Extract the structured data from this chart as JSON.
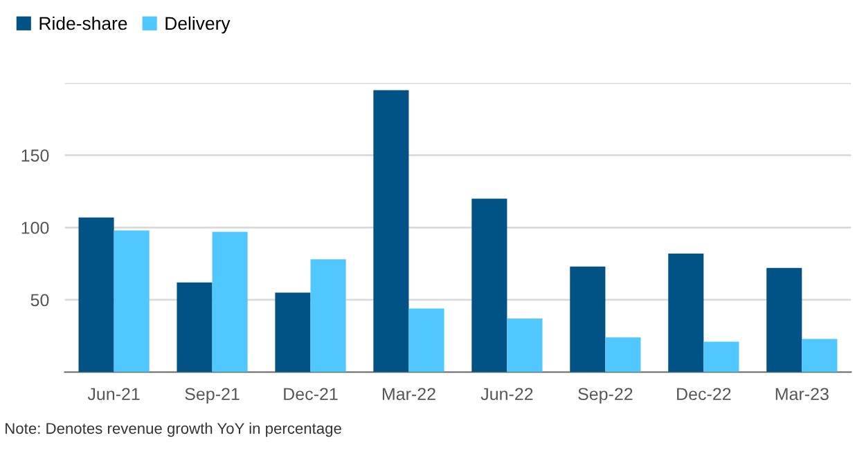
{
  "chart_data": {
    "type": "bar",
    "categories": [
      "Jun-21",
      "Sep-21",
      "Dec-21",
      "Mar-22",
      "Jun-22",
      "Sep-22",
      "Dec-22",
      "Mar-23"
    ],
    "series": [
      {
        "name": "Ride-share",
        "color": "#005384",
        "values": [
          107,
          62,
          55,
          195,
          120,
          73,
          82,
          72
        ]
      },
      {
        "name": "Delivery",
        "color": "#50c8ff",
        "values": [
          98,
          97,
          78,
          44,
          37,
          24,
          21,
          23
        ]
      }
    ],
    "ylim": [
      0,
      200
    ],
    "yticks": [
      50,
      100,
      150,
      {
        "value": 200,
        "label": null
      }
    ],
    "grid": "y",
    "legend": "top left",
    "annotations": [
      "Note: Denotes revenue growth YoY in percentage"
    ]
  }
}
